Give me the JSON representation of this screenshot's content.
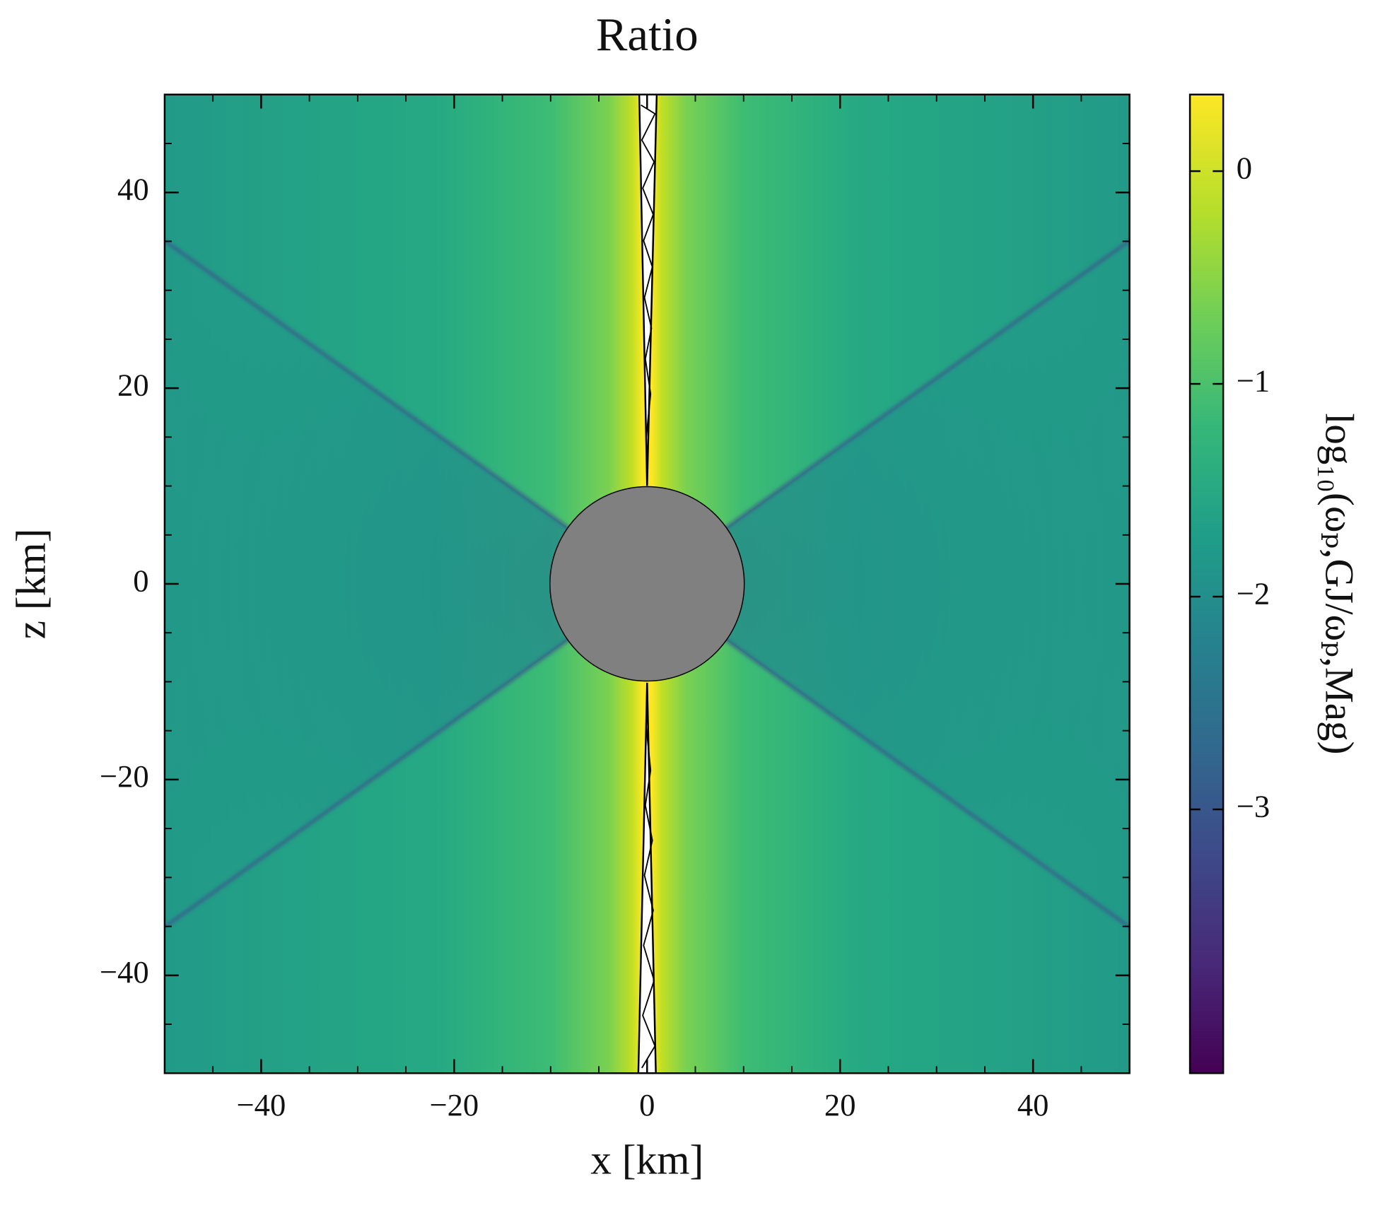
{
  "chart_data": {
    "type": "heatmap",
    "title": "Ratio",
    "x_label": "x  [km]",
    "y_label": "z  [km]",
    "xlim": [
      -50,
      50
    ],
    "ylim": [
      -50,
      50
    ],
    "xticks": [
      {
        "value": -40,
        "label": "−40"
      },
      {
        "value": -20,
        "label": "−20"
      },
      0,
      20,
      40
    ],
    "yticks": [
      {
        "value": -40,
        "label": "−40"
      },
      {
        "value": -20,
        "label": "−20"
      },
      0,
      20,
      40
    ],
    "xminorticks": [
      -45,
      -35,
      -30,
      -25,
      -15,
      -10,
      -5,
      5,
      10,
      15,
      25,
      30,
      35,
      45
    ],
    "yminorticks": [
      -45,
      -35,
      -30,
      -25,
      -15,
      -10,
      -5,
      5,
      10,
      15,
      25,
      30,
      35,
      45
    ],
    "colorbar_label": "log₁₀(ωₚ,GJ/ωₚ,Mag)",
    "clim": [
      -4.24,
      0.36
    ],
    "cticks": [
      {
        "value": -3,
        "label": "−3"
      },
      {
        "value": -2,
        "label": "−2"
      },
      {
        "value": -1,
        "label": "−1"
      },
      0
    ],
    "colormap": "viridis"
  }
}
